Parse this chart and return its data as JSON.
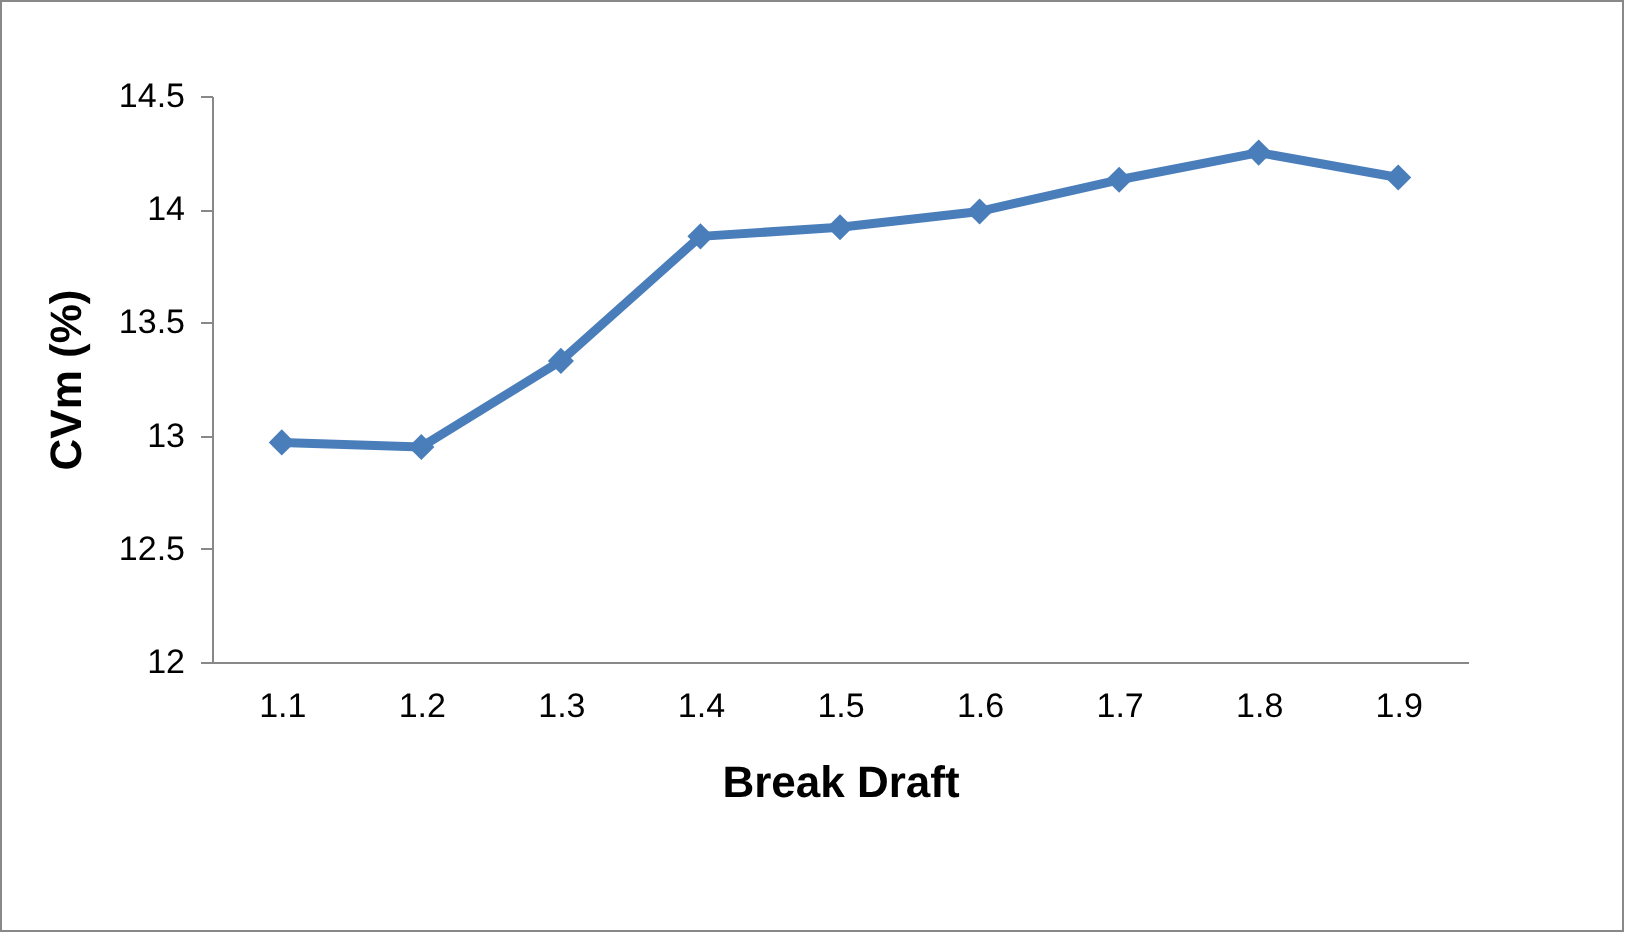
{
  "chart_data": {
    "type": "line",
    "xlabel": "Break Draft",
    "ylabel": "CVm (%)",
    "categories": [
      "1.1",
      "1.2",
      "1.3",
      "1.4",
      "1.5",
      "1.6",
      "1.7",
      "1.8",
      "1.9"
    ],
    "series": [
      {
        "color": "#4a7ebb",
        "values": [
          12.97,
          12.95,
          13.33,
          13.88,
          13.92,
          13.99,
          14.13,
          14.25,
          14.14
        ]
      }
    ],
    "ylim": [
      12,
      14.5
    ],
    "yticks": [
      12,
      12.5,
      13,
      13.5,
      14,
      14.5
    ],
    "marker": "diamond",
    "line_style": "solid",
    "grid": false
  }
}
